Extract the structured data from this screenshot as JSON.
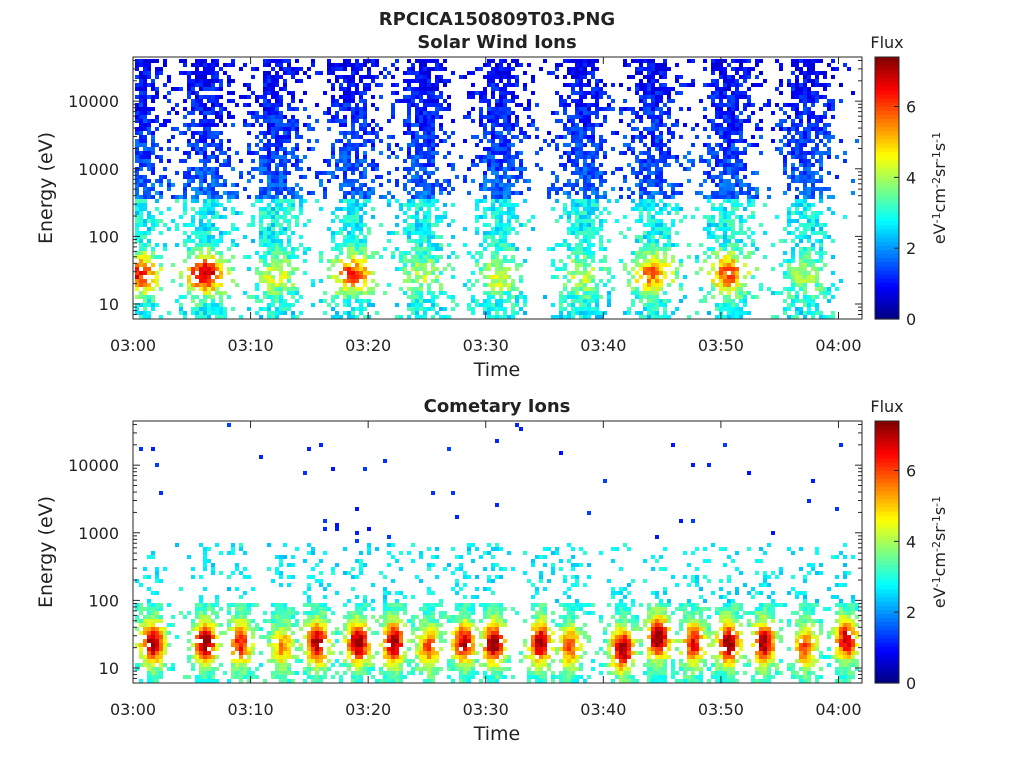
{
  "figure": {
    "title": "RPCICA150809T03.PNG"
  },
  "colorbar": {
    "label": "Flux",
    "unit_base": "eV",
    "unit_parts": [
      {
        "b": "eV",
        "e": "-1"
      },
      {
        "b": "cm",
        "e": "-2"
      },
      {
        "b": "sr",
        "e": "-1"
      },
      {
        "b": "s",
        "e": "-1"
      }
    ],
    "range": [
      0,
      7.4
    ],
    "ticks": [
      "0",
      "2",
      "4",
      "6"
    ],
    "tick_values": [
      0,
      2,
      4,
      6
    ],
    "colormap": "jet"
  },
  "chart_data": [
    {
      "type": "heatmap",
      "title": "Solar Wind Ions",
      "xlabel": "Time",
      "ylabel": "Energy (eV)",
      "x_range": [
        "03:00",
        "04:02"
      ],
      "x_ticks": [
        "03:00",
        "03:10",
        "03:20",
        "03:30",
        "03:40",
        "03:50",
        "04:00"
      ],
      "y_scale": "log",
      "y_range": [
        6,
        45000
      ],
      "y_ticks": [
        "10",
        "100",
        "1000",
        "10000"
      ],
      "z_range": [
        0,
        7.4
      ],
      "bursts": [
        {
          "t": 0.3,
          "peak_energy": 30,
          "peak_flux": 6.2
        },
        {
          "t": 6.0,
          "peak_energy": 30,
          "peak_flux": 6.8
        },
        {
          "t": 12.0,
          "peak_energy": 28,
          "peak_flux": 4.2
        },
        {
          "t": 18.5,
          "peak_energy": 30,
          "peak_flux": 5.8
        },
        {
          "t": 24.5,
          "peak_energy": 28,
          "peak_flux": 4.0
        },
        {
          "t": 31.0,
          "peak_energy": 28,
          "peak_flux": 4.2
        },
        {
          "t": 38.0,
          "peak_energy": 28,
          "peak_flux": 4.0
        },
        {
          "t": 44.0,
          "peak_energy": 30,
          "peak_flux": 5.5
        },
        {
          "t": 50.5,
          "peak_energy": 30,
          "peak_flux": 5.8
        },
        {
          "t": 57.0,
          "peak_energy": 28,
          "peak_flux": 3.8
        }
      ]
    },
    {
      "type": "heatmap",
      "title": "Cometary Ions",
      "xlabel": "Time",
      "ylabel": "Energy (eV)",
      "x_range": [
        "03:00",
        "04:02"
      ],
      "x_ticks": [
        "03:00",
        "03:10",
        "03:20",
        "03:30",
        "03:40",
        "03:50",
        "04:00"
      ],
      "y_scale": "log",
      "y_range": [
        6,
        45000
      ],
      "y_ticks": [
        "10",
        "100",
        "1000",
        "10000"
      ],
      "z_range": [
        0,
        7.4
      ],
      "bursts": [
        {
          "t": 1.5,
          "peak_energy": 25,
          "peak_flux": 7.0
        },
        {
          "t": 6.0,
          "peak_energy": 25,
          "peak_flux": 7.0
        },
        {
          "t": 9.0,
          "peak_energy": 25,
          "peak_flux": 6.0
        },
        {
          "t": 12.5,
          "peak_energy": 22,
          "peak_flux": 5.0
        },
        {
          "t": 15.5,
          "peak_energy": 25,
          "peak_flux": 6.8
        },
        {
          "t": 19.0,
          "peak_energy": 25,
          "peak_flux": 7.0
        },
        {
          "t": 22.0,
          "peak_energy": 25,
          "peak_flux": 7.0
        },
        {
          "t": 25.0,
          "peak_energy": 22,
          "peak_flux": 5.5
        },
        {
          "t": 28.0,
          "peak_energy": 25,
          "peak_flux": 6.5
        },
        {
          "t": 30.5,
          "peak_energy": 25,
          "peak_flux": 7.0
        },
        {
          "t": 34.5,
          "peak_energy": 25,
          "peak_flux": 6.8
        },
        {
          "t": 37.0,
          "peak_energy": 22,
          "peak_flux": 5.5
        },
        {
          "t": 41.5,
          "peak_energy": 20,
          "peak_flux": 7.0
        },
        {
          "t": 44.5,
          "peak_energy": 30,
          "peak_flux": 7.2
        },
        {
          "t": 47.5,
          "peak_energy": 25,
          "peak_flux": 6.2
        },
        {
          "t": 50.5,
          "peak_energy": 25,
          "peak_flux": 7.0
        },
        {
          "t": 53.5,
          "peak_energy": 25,
          "peak_flux": 6.8
        },
        {
          "t": 57.0,
          "peak_energy": 22,
          "peak_flux": 5.5
        },
        {
          "t": 60.5,
          "peak_energy": 28,
          "peak_flux": 6.5
        }
      ]
    }
  ]
}
